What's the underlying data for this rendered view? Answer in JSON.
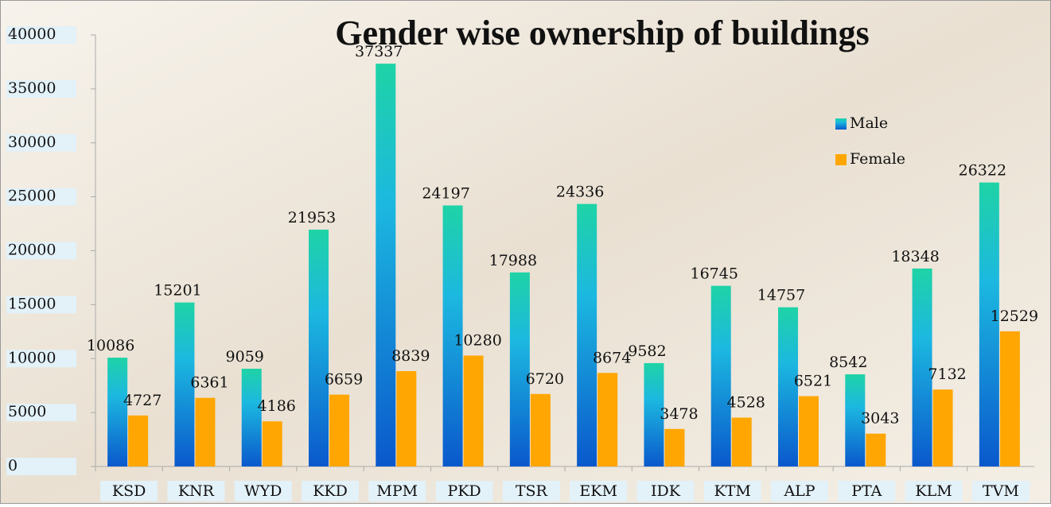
{
  "chart_data": {
    "type": "bar",
    "title": "Gender wise ownership of buildings",
    "categories": [
      "KSD",
      "KNR",
      "WYD",
      "KKD",
      "MPM",
      "PKD",
      "TSR",
      "EKM",
      "IDK",
      "KTM",
      "ALP",
      "PTA",
      "KLM",
      "TVM"
    ],
    "series": [
      {
        "name": "Male",
        "color": "#1cb8e0",
        "values": [
          10086,
          15201,
          9059,
          21953,
          37337,
          24197,
          17988,
          24336,
          9582,
          16745,
          14757,
          8542,
          18348,
          26322
        ]
      },
      {
        "name": "Female",
        "color": "#ffa602",
        "values": [
          4727,
          6361,
          4186,
          6659,
          8839,
          10280,
          6720,
          8674,
          3478,
          4528,
          6521,
          3043,
          7132,
          12529
        ]
      }
    ],
    "ylim": [
      0,
      40000
    ],
    "yticks": [
      0,
      5000,
      10000,
      15000,
      20000,
      25000,
      30000,
      35000,
      40000
    ]
  }
}
